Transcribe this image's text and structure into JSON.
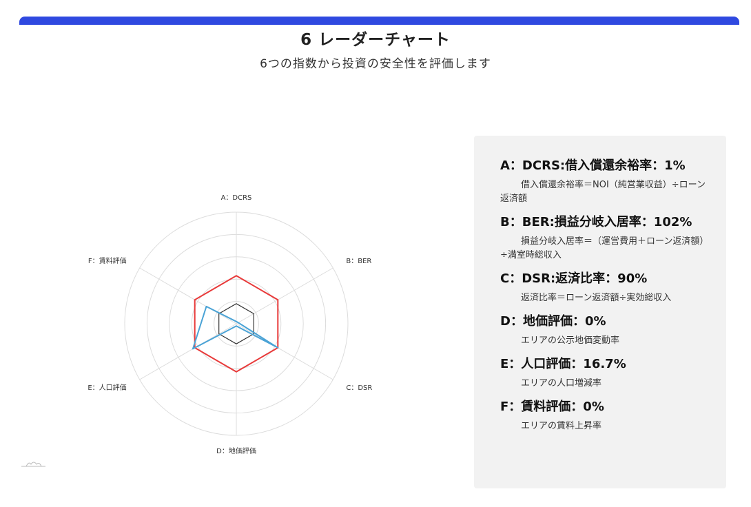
{
  "header": {
    "title": "6 レーダーチャート",
    "subtitle": "6つの指数から投資の安全性を評価します"
  },
  "chart_data": {
    "type": "radar",
    "axes": [
      "A：DCRS",
      "B：BER",
      "C：DSR",
      "D：地価評価",
      "E：人口評価",
      "F：賃料評価"
    ],
    "rings": 5,
    "grid": true,
    "series": [
      {
        "color": "#e83a3a",
        "values": [
          0.43,
          0.43,
          0.43,
          0.43,
          0.43,
          0.43
        ]
      },
      {
        "color": "#333333",
        "values": [
          0.18,
          0.18,
          0.18,
          0.18,
          0.18,
          0.18
        ]
      },
      {
        "color": "#4aa3d6",
        "values": [
          0.02,
          0.02,
          0.43,
          0.02,
          0.45,
          0.31
        ]
      }
    ]
  },
  "panel": {
    "items": [
      {
        "title": "A：DCRS:借入償還余裕率：1%",
        "desc": "借入償還余裕率＝NOI（純営業収益）÷ローン返済額"
      },
      {
        "title": "B：BER:損益分岐入居率：102%",
        "desc": "損益分岐入居率＝（運営費用＋ローン返済額）÷満室時総収入"
      },
      {
        "title": "C：DSR:返済比率：90%",
        "desc": "返済比率＝ローン返済額÷実効総収入"
      },
      {
        "title": "D：地価評価：0%",
        "desc": "エリアの公示地価変動率"
      },
      {
        "title": "E：人口評価：16.7%",
        "desc": "エリアの人口増減率"
      },
      {
        "title": "F：賃料評価：0%",
        "desc": "エリアの賃料上昇率"
      }
    ]
  }
}
